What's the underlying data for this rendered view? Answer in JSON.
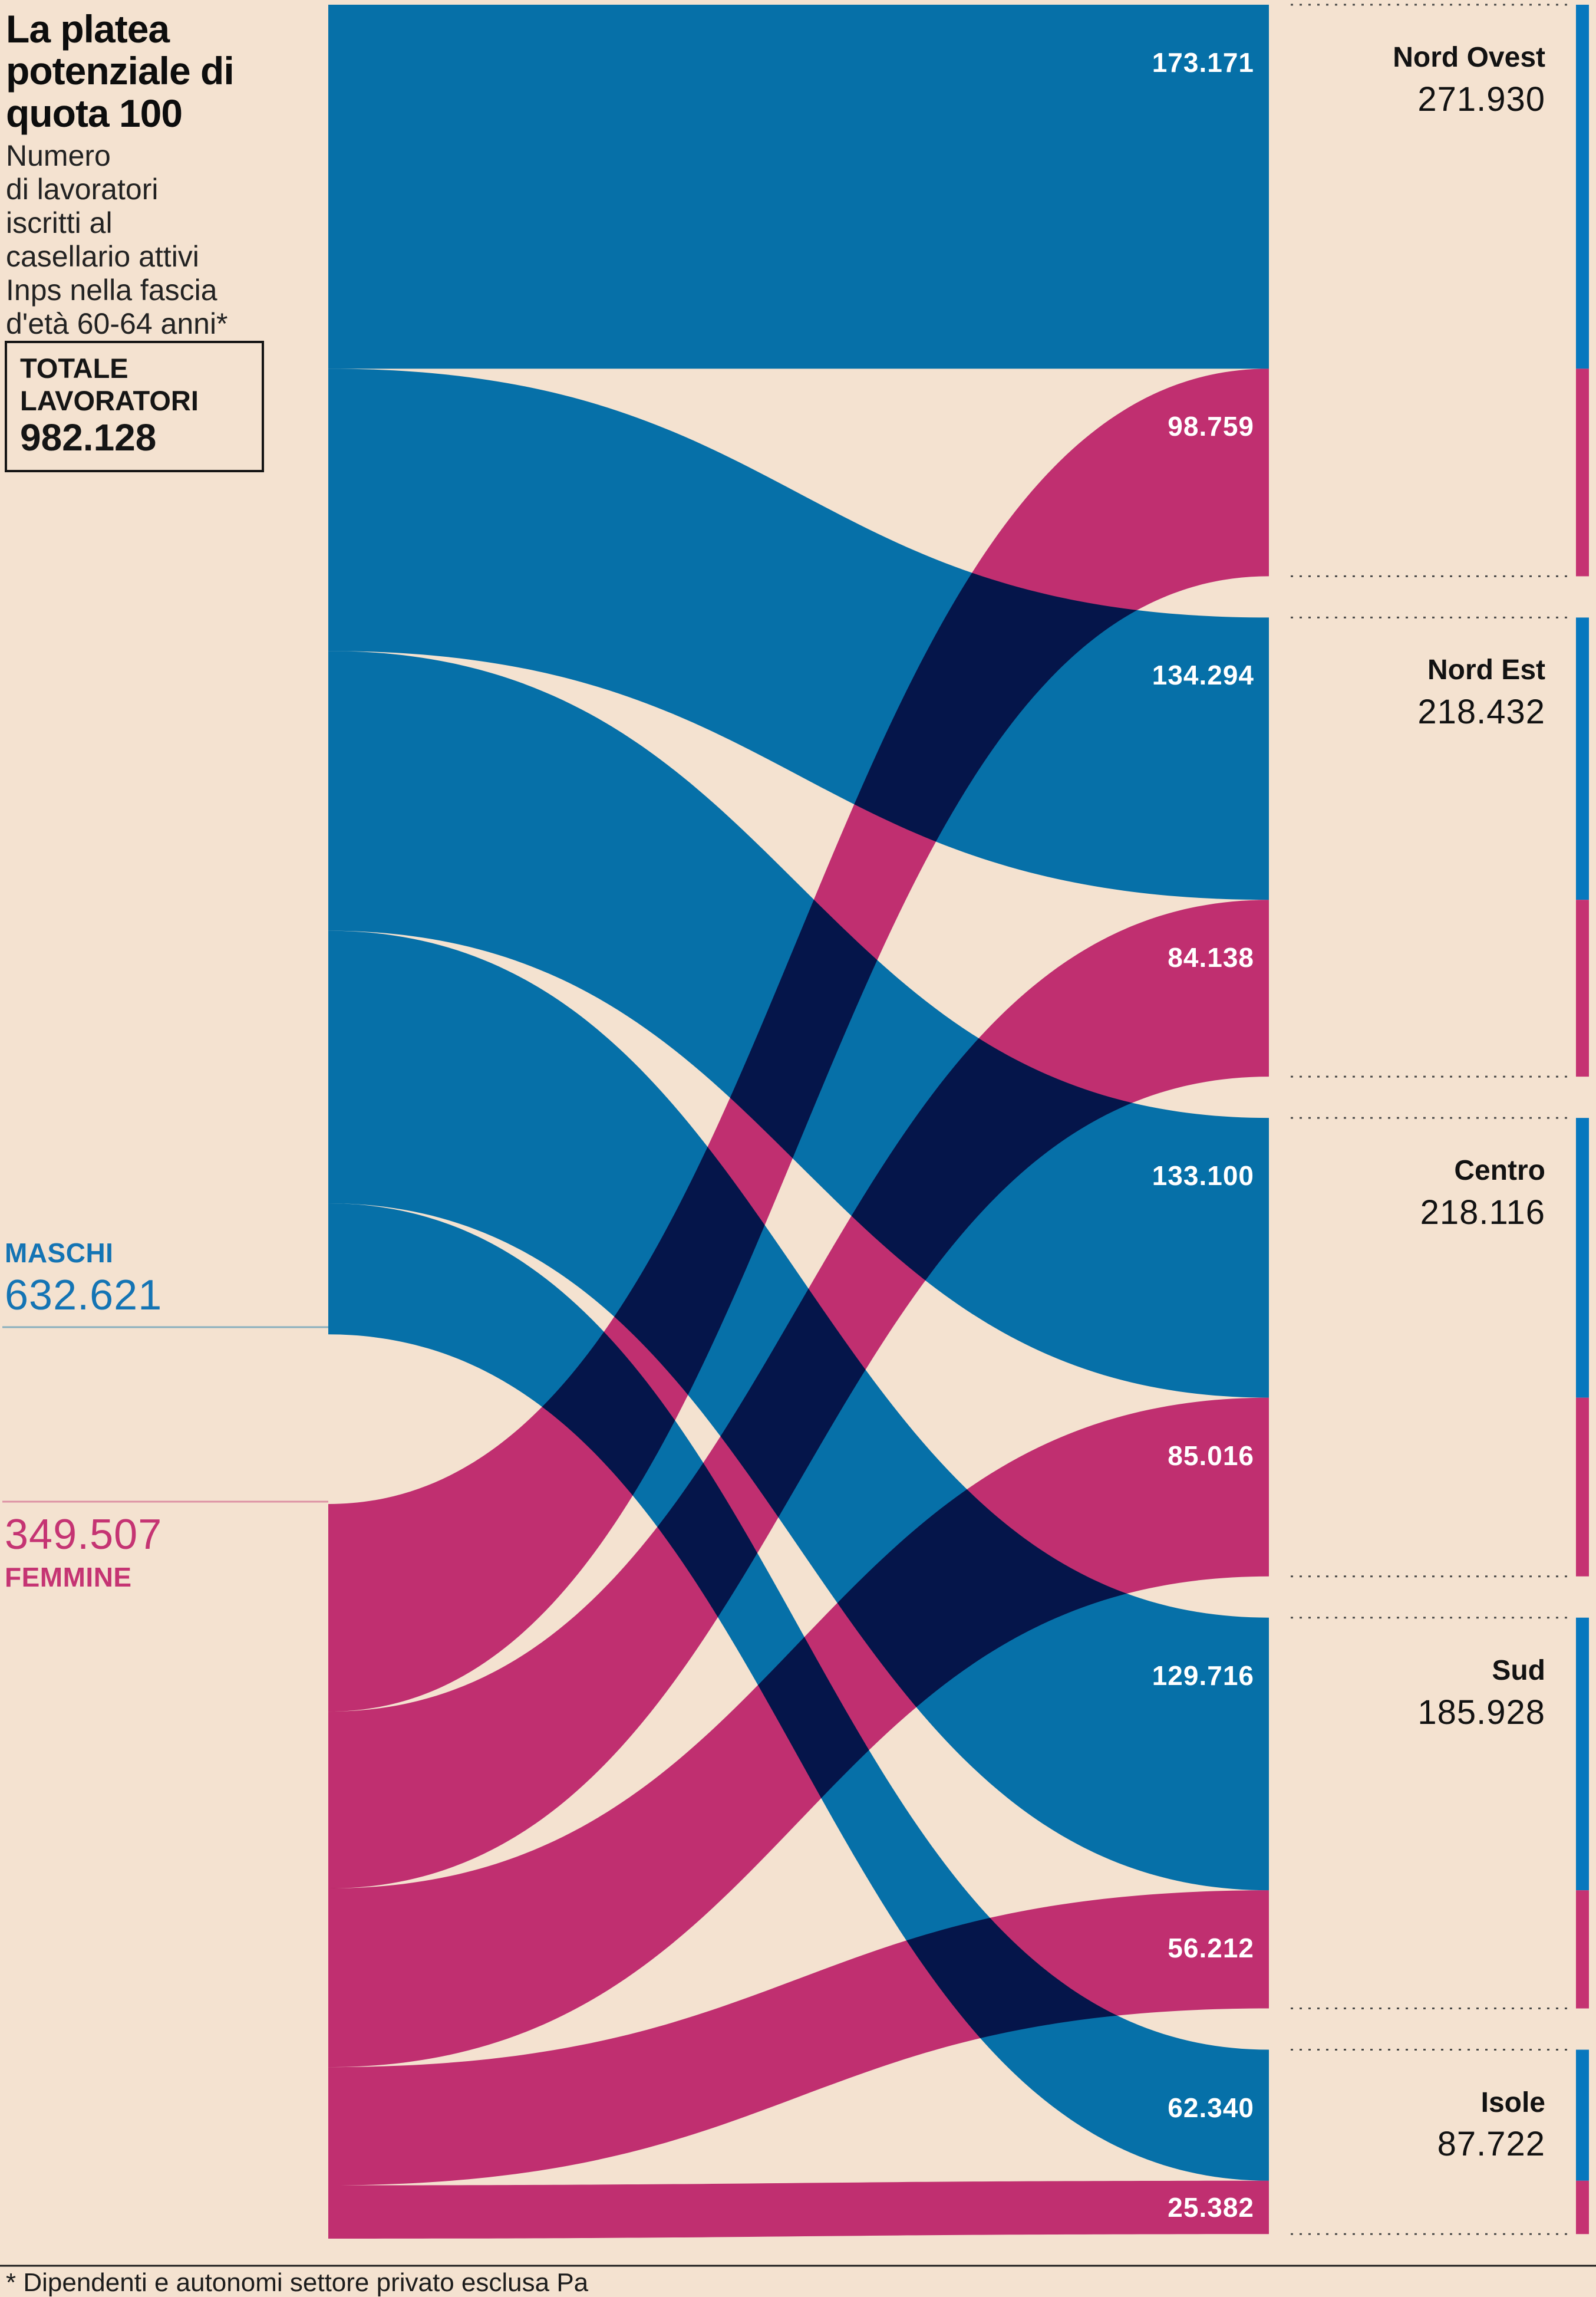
{
  "colors": {
    "background": "#F4E2D0",
    "flow_blue": "#0670A8",
    "flow_pink": "#C02F70",
    "overlap_navy": "#0E1B52",
    "bar_blue": "#0878BE",
    "bar_pink": "#C53372",
    "maschi_text": "#1474B4",
    "femmine_text": "#C53473",
    "flow_label_text": "#FFFFFF",
    "ink": "#121212",
    "dotted_line": "#4A4A48"
  },
  "chart_data": {
    "type": "sankey",
    "title": "La platea potenziale di quota 100",
    "subtitle_lines": [
      "Numero",
      "di lavoratori",
      "iscritti al",
      "casellario attivi",
      "Inps nella fascia",
      "d'età 60-64 anni*"
    ],
    "total": {
      "label_line1": "TOTALE",
      "label_line2": "LAVORATORI",
      "value": 982128,
      "value_label": "982.128"
    },
    "sources": [
      {
        "name": "MASCHI",
        "value": 632621,
        "value_label": "632.621",
        "color": "#0670A8"
      },
      {
        "name": "FEMMINE",
        "value": 349507,
        "value_label": "349.507",
        "color": "#C02F70"
      }
    ],
    "regions": [
      {
        "name": "Nord Ovest",
        "total": 271930,
        "total_label": "271.930",
        "maschi": {
          "value": 173171,
          "label": "173.171"
        },
        "femmine": {
          "value": 98759,
          "label": "98.759"
        }
      },
      {
        "name": "Nord Est",
        "total": 218432,
        "total_label": "218.432",
        "maschi": {
          "value": 134294,
          "label": "134.294"
        },
        "femmine": {
          "value": 84138,
          "label": "84.138"
        }
      },
      {
        "name": "Centro",
        "total": 218116,
        "total_label": "218.116",
        "maschi": {
          "value": 133100,
          "label": "133.100"
        },
        "femmine": {
          "value": 85016,
          "label": "85.016"
        }
      },
      {
        "name": "Sud",
        "total": 185928,
        "total_label": "185.928",
        "maschi": {
          "value": 129716,
          "label": "129.716"
        },
        "femmine": {
          "value": 56212,
          "label": "56.212"
        }
      },
      {
        "name": "Isole",
        "total": 87722,
        "total_label": "87.722",
        "maschi": {
          "value": 62340,
          "label": "62.340"
        },
        "femmine": {
          "value": 25382,
          "label": "25.382"
        }
      }
    ],
    "footnote": "* Dipendenti e autonomi settore privato esclusa Pa"
  }
}
